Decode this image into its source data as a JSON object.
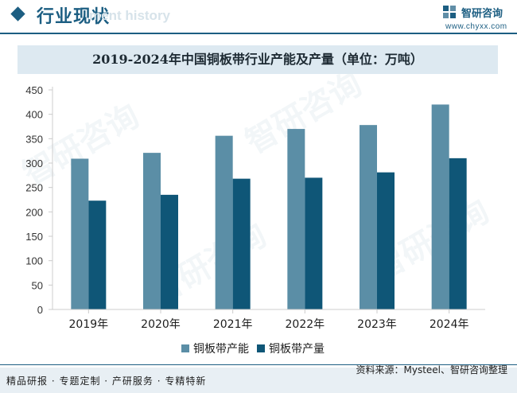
{
  "header": {
    "title": "行业现状",
    "ghost_text": "ment history",
    "brand_name": "智研咨询",
    "brand_url": "www.chyxx.com"
  },
  "chart_data": {
    "type": "bar",
    "title": "2019-2024年中国铜板带行业产能及产量（单位：万吨）",
    "categories": [
      "2019年",
      "2020年",
      "2021年",
      "2022年",
      "2023年",
      "2024年"
    ],
    "series": [
      {
        "name": "铜板带产能",
        "values": [
          309,
          321,
          356,
          370,
          378,
          420
        ],
        "color": "#5b8ea6"
      },
      {
        "name": "铜板带产量",
        "values": [
          223,
          235,
          268,
          270,
          281,
          310
        ],
        "color": "#0f5677"
      }
    ],
    "ylim": [
      0,
      450
    ],
    "yticks": [
      0,
      50,
      100,
      150,
      200,
      250,
      300,
      350,
      400,
      450
    ],
    "xlabel": "",
    "ylabel": "",
    "grid": false,
    "legend_position": "bottom"
  },
  "watermark": {
    "text": "智研咨询"
  },
  "footer": {
    "source": "资料来源：Mysteel、智研咨询整理",
    "slogan": "精品研报 · 专题定制 · 产研服务 · 专精特新"
  }
}
